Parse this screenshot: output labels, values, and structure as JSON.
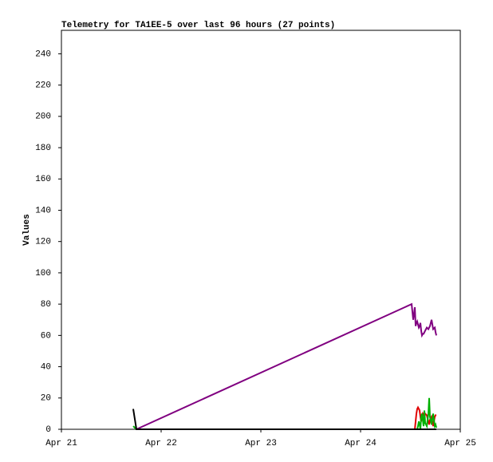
{
  "chart_data": {
    "type": "line",
    "title": "Telemetry for TA1EE-5 over last 96 hours (27 points)",
    "y_label": "Values",
    "x": [
      17.28,
      18.05,
      84.29,
      84.67,
      85.06,
      85.25,
      85.44,
      85.63,
      85.82,
      86.02,
      86.21,
      86.4,
      86.59,
      86.78,
      86.98,
      87.17,
      87.36,
      87.55,
      87.94,
      88.32,
      88.51,
      88.7,
      89.09,
      89.47,
      89.86,
      90.05,
      90.24
    ],
    "xlim": [
      0,
      96
    ],
    "xticks": [
      {
        "value": 0,
        "label": "Apr 21"
      },
      {
        "value": 24,
        "label": "Apr 22"
      },
      {
        "value": 48,
        "label": "Apr 23"
      },
      {
        "value": 72,
        "label": "Apr 24"
      },
      {
        "value": 96,
        "label": "Apr 25"
      }
    ],
    "ylim": [
      0,
      255
    ],
    "yticks": [
      0,
      20,
      40,
      60,
      80,
      100,
      120,
      140,
      160,
      180,
      200,
      220,
      240
    ],
    "series": [
      {
        "color": "#800080",
        "values": [
          null,
          0,
          80,
          70,
          78,
          66,
          68,
          69,
          67,
          65,
          66,
          68,
          63,
          60,
          61,
          61,
          62,
          63,
          65,
          64,
          65,
          66,
          70,
          64,
          65,
          62,
          60
        ]
      },
      {
        "color": "#e00000",
        "values": [
          null,
          0,
          0,
          0,
          0,
          5,
          10,
          13,
          14,
          13,
          12,
          8,
          5,
          8,
          10,
          9,
          8,
          10,
          9,
          5,
          3,
          6,
          8,
          2,
          8,
          9,
          9
        ]
      },
      {
        "color": "#00b000",
        "values": [
          2,
          0,
          0,
          0,
          0,
          0,
          0,
          0,
          2,
          5,
          3,
          0,
          8,
          10,
          6,
          2,
          12,
          4,
          2,
          10,
          20,
          8,
          3,
          10,
          2,
          3,
          1
        ]
      },
      {
        "color": "#000000",
        "values": [
          13,
          0,
          0,
          0,
          0,
          0,
          0,
          0,
          0,
          0,
          0,
          0,
          0,
          0,
          0,
          0,
          0,
          0,
          0,
          0,
          0,
          0,
          0,
          0,
          0,
          0,
          0
        ]
      }
    ]
  }
}
